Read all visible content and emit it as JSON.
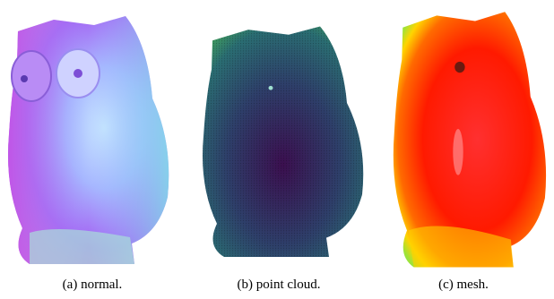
{
  "figure": {
    "panels": [
      {
        "caption": "(a) normal."
      },
      {
        "caption": "(b) point cloud."
      },
      {
        "caption": "(c) mesh."
      }
    ]
  }
}
